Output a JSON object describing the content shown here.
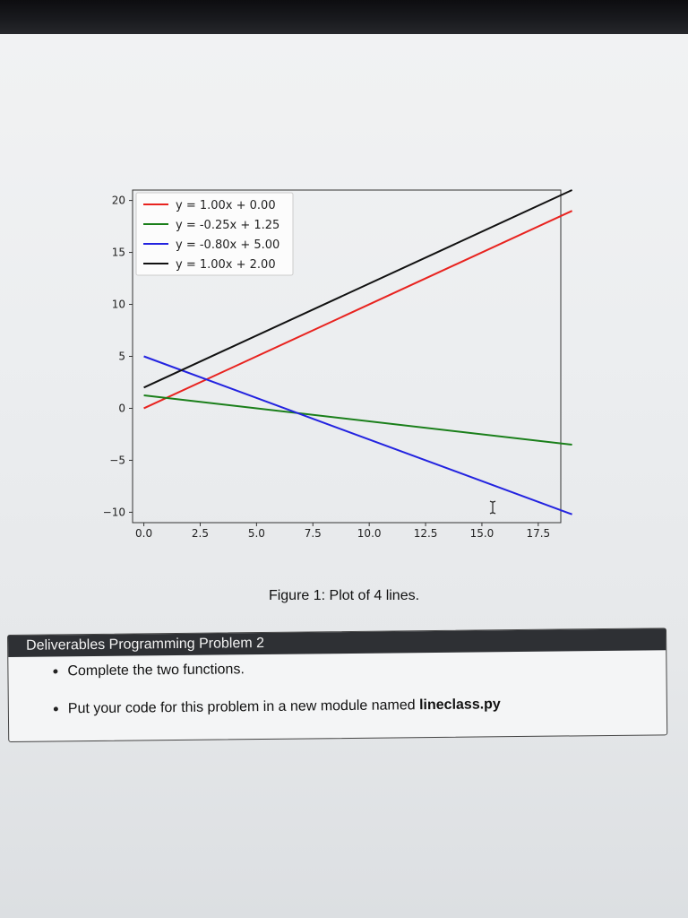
{
  "chart_data": {
    "type": "line",
    "xlim": [
      -0.5,
      18.5
    ],
    "ylim": [
      -11,
      21
    ],
    "xticks": [
      0.0,
      2.5,
      5.0,
      7.5,
      10.0,
      12.5,
      15.0,
      17.5
    ],
    "xtick_labels": [
      "0.0",
      "2.5",
      "5.0",
      "7.5",
      "10.0",
      "12.5",
      "15.0",
      "17.5"
    ],
    "yticks": [
      20,
      15,
      10,
      5,
      0,
      -5,
      -10
    ],
    "ytick_labels": [
      "20",
      "15",
      "10",
      "5",
      "0",
      "−5",
      "−10"
    ],
    "legend_position": "top-left",
    "grid": false,
    "series": [
      {
        "name": "y = 1.00x + 0.00",
        "color": "#e8231f",
        "x": [
          0,
          19
        ],
        "y": [
          0.0,
          19.0
        ]
      },
      {
        "name": "y = -0.25x + 1.25",
        "color": "#1a7f1a",
        "x": [
          0,
          19
        ],
        "y": [
          1.25,
          -3.5
        ]
      },
      {
        "name": "y = -0.80x + 5.00",
        "color": "#2323e0",
        "x": [
          0,
          19
        ],
        "y": [
          5.0,
          -10.2
        ]
      },
      {
        "name": "y = 1.00x + 2.00",
        "color": "#111111",
        "x": [
          0,
          19
        ],
        "y": [
          2.0,
          21.0
        ]
      }
    ]
  },
  "caption": "Figure 1: Plot of 4 lines.",
  "deliverables": {
    "title": "Deliverables Programming Problem 2",
    "item1": "Complete the two functions.",
    "item2_prefix": "Put your code for this problem in a new module named ",
    "item2_bold": "lineclass.py"
  }
}
